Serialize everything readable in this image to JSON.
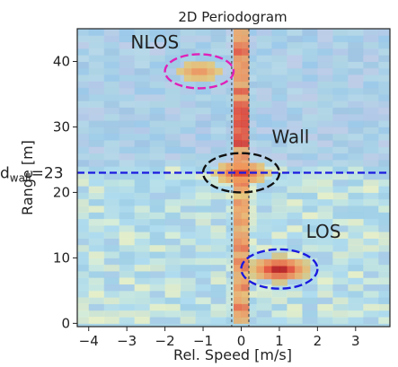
{
  "chart_data": {
    "type": "heatmap",
    "title": "2D Periodogram",
    "xlabel": "Rel. Speed [m/s]",
    "ylabel": "Range [m]",
    "xlim": [
      -4.3,
      3.9
    ],
    "ylim": [
      -0.5,
      45
    ],
    "xticks": [
      -4,
      -3,
      -2,
      -1,
      0,
      1,
      2,
      3
    ],
    "yticks": [
      0,
      10,
      20,
      30,
      40
    ],
    "grid": false,
    "colormap": "jet",
    "background_color": "#a8d4e6",
    "hot_spots": [
      {
        "label": "LOS",
        "speed": 1.0,
        "range": 8.3,
        "intensity": 1.0
      },
      {
        "label": "Wall",
        "speed": 0.0,
        "range": 23.0,
        "intensity": 0.85
      },
      {
        "label": "NLOS",
        "speed": -1.1,
        "range": 38.5,
        "intensity": 0.6
      }
    ],
    "zero_speed_band": {
      "speed_min": -0.2,
      "speed_max": 0.2,
      "range_min": 0,
      "range_max": 45
    },
    "annotations": [
      {
        "text": "NLOS",
        "color": "#e020b8",
        "speed": -1.1,
        "range": 38.5,
        "ellipse_w_ms": 1.8,
        "ellipse_h_m": 5.2
      },
      {
        "text": "Wall",
        "color": "#111111",
        "speed": 0.0,
        "range": 23.0,
        "ellipse_w_ms": 2.0,
        "ellipse_h_m": 6.0
      },
      {
        "text": "LOS",
        "color": "#1a1adf",
        "speed": 1.0,
        "range": 8.3,
        "ellipse_w_ms": 2.0,
        "ellipse_h_m": 6.0
      }
    ],
    "reference_line": {
      "range": 23,
      "label_base": "d",
      "label_sub": "wall",
      "label_value": "=23",
      "color": "#1a1adf"
    },
    "zero_band_edges": [
      -0.25,
      0.2
    ]
  }
}
